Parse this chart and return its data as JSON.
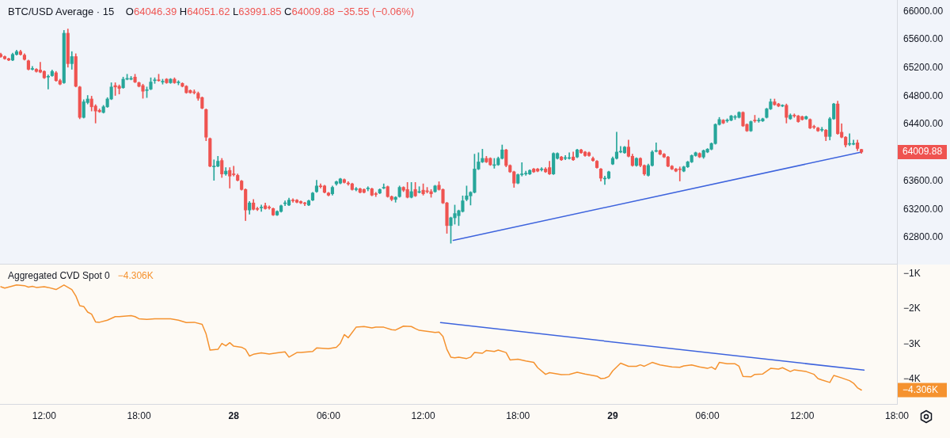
{
  "chart_data": [
    {
      "type": "candlestick",
      "title": "BTC/USD Average · 15",
      "subtitle": "O64046.39 H64051.62 L63991.85 C64009.88 −35.55 (−0.06%)",
      "x": [
        "--04-27T09:15",
        "--04-27T09:30",
        "--04-27T09:45",
        "--04-27T10:00",
        "--04-27T10:15",
        "--04-27T10:30",
        "--04-27T10:45",
        "--04-27T11:00",
        "--04-27T11:15",
        "--04-27T11:30",
        "--04-27T11:45",
        "--04-27T12:00",
        "--04-27T12:15",
        "--04-27T12:30",
        "--04-27T12:45",
        "--04-27T13:00",
        "--04-27T13:15",
        "--04-27T13:30",
        "--04-27T13:45",
        "--04-27T14:00",
        "--04-27T14:15",
        "--04-27T14:30",
        "--04-27T14:45",
        "--04-27T15:00",
        "--04-27T15:15",
        "--04-27T15:30",
        "--04-27T15:45",
        "--04-27T16:00",
        "--04-27T16:15",
        "--04-27T16:30",
        "--04-27T16:45",
        "--04-27T17:00",
        "--04-27T17:15",
        "--04-27T17:30",
        "--04-27T17:45",
        "--04-27T18:00",
        "--04-27T18:15",
        "--04-27T18:30",
        "--04-27T18:45",
        "--04-27T19:00",
        "--04-27T19:15",
        "--04-27T19:30",
        "--04-27T19:45",
        "--04-27T20:00",
        "--04-27T20:15",
        "--04-27T20:30",
        "--04-27T20:45",
        "--04-27T21:00",
        "--04-27T21:15",
        "--04-27T21:30",
        "--04-27T21:45",
        "--04-27T22:00",
        "--04-27T22:15",
        "--04-27T22:30",
        "--04-27T22:45",
        "--04-27T23:00",
        "--04-27T23:15",
        "--04-27T23:30",
        "--04-27T23:45",
        "--04-28T00:00",
        "--04-28T00:15",
        "--04-28T00:30",
        "--04-28T00:45",
        "--04-28T01:00",
        "--04-28T01:15",
        "--04-28T01:30",
        "--04-28T01:45",
        "--04-28T02:00",
        "--04-28T02:15",
        "--04-28T02:30",
        "--04-28T02:45",
        "--04-28T03:00",
        "--04-28T03:15",
        "--04-28T03:30",
        "--04-28T03:45",
        "--04-28T04:00",
        "--04-28T04:15",
        "--04-28T04:30",
        "--04-28T04:45",
        "--04-28T05:00",
        "--04-28T05:15",
        "--04-28T05:30",
        "--04-28T05:45",
        "--04-28T06:00",
        "--04-28T06:15",
        "--04-28T06:30",
        "--04-28T06:45",
        "--04-28T07:00",
        "--04-28T07:15",
        "--04-28T07:30",
        "--04-28T07:45",
        "--04-28T08:00",
        "--04-28T08:15",
        "--04-28T08:30",
        "--04-28T08:45",
        "--04-28T09:00",
        "--04-28T09:15",
        "--04-28T09:30",
        "--04-28T09:45",
        "--04-28T10:00",
        "--04-28T10:15",
        "--04-28T10:30",
        "--04-28T10:45",
        "--04-28T11:00",
        "--04-28T11:15",
        "--04-28T11:30",
        "--04-28T11:45",
        "--04-28T12:00",
        "--04-28T12:15",
        "--04-28T12:30",
        "--04-28T12:45",
        "--04-28T13:00",
        "--04-28T13:15",
        "--04-28T13:30",
        "--04-28T13:45",
        "--04-28T14:00",
        "--04-28T14:15",
        "--04-28T14:30",
        "--04-28T14:45",
        "--04-28T15:00",
        "--04-28T15:15",
        "--04-28T15:30",
        "--04-28T15:45",
        "--04-28T16:00",
        "--04-28T16:15",
        "--04-28T16:30",
        "--04-28T16:45",
        "--04-28T17:00",
        "--04-28T17:15",
        "--04-28T17:30",
        "--04-28T17:45",
        "--04-28T18:00",
        "--04-28T18:15",
        "--04-28T18:30",
        "--04-28T18:45",
        "--04-28T19:00",
        "--04-28T19:15",
        "--04-28T19:30",
        "--04-28T19:45",
        "--04-28T20:00",
        "--04-28T20:15",
        "--04-28T20:30",
        "--04-28T20:45",
        "--04-28T21:00",
        "--04-28T21:15",
        "--04-28T21:30",
        "--04-28T21:45",
        "--04-28T22:00",
        "--04-28T22:15",
        "--04-28T22:30",
        "--04-28T22:45",
        "--04-28T23:00",
        "--04-28T23:15",
        "--04-28T23:30",
        "--04-28T23:45",
        "--04-29T00:00",
        "--04-29T00:15",
        "--04-29T00:30",
        "--04-29T00:45",
        "--04-29T01:00",
        "--04-29T01:15",
        "--04-29T01:30",
        "--04-29T01:45",
        "--04-29T02:00",
        "--04-29T02:15",
        "--04-29T02:30",
        "--04-29T02:45",
        "--04-29T03:00",
        "--04-29T03:15",
        "--04-29T03:30",
        "--04-29T03:45",
        "--04-29T04:00",
        "--04-29T04:15",
        "--04-29T04:30",
        "--04-29T04:45",
        "--04-29T05:00",
        "--04-29T05:15",
        "--04-29T05:30",
        "--04-29T05:45",
        "--04-29T06:00",
        "--04-29T06:15",
        "--04-29T06:30",
        "--04-29T06:45",
        "--04-29T07:00",
        "--04-29T07:15",
        "--04-29T07:30",
        "--04-29T07:45",
        "--04-29T08:00",
        "--04-29T08:15",
        "--04-29T08:30",
        "--04-29T08:45",
        "--04-29T09:00",
        "--04-29T09:15",
        "--04-29T09:30",
        "--04-29T09:45",
        "--04-29T10:00",
        "--04-29T10:15",
        "--04-29T10:30",
        "--04-29T10:45",
        "--04-29T11:00",
        "--04-29T11:15",
        "--04-29T11:30",
        "--04-29T11:45",
        "--04-29T12:00",
        "--04-29T12:15",
        "--04-29T12:30",
        "--04-29T12:45",
        "--04-29T13:00",
        "--04-29T13:15",
        "--04-29T13:30",
        "--04-29T13:45",
        "--04-29T14:00",
        "--04-29T14:15",
        "--04-29T14:30",
        "--04-29T14:45",
        "--04-29T15:00",
        "--04-29T15:15",
        "--04-29T15:30",
        "--04-29T15:45"
      ],
      "ohlc": [
        [
          65390,
          65410,
          65350,
          65360
        ],
        [
          65360,
          65370,
          65320,
          65330
        ],
        [
          65330,
          65340,
          65300,
          65310
        ],
        [
          65310,
          65410,
          65300,
          65390
        ],
        [
          65390,
          65450,
          65380,
          65430
        ],
        [
          65430,
          65450,
          65380,
          65390
        ],
        [
          65380,
          65400,
          65310,
          65320
        ],
        [
          65300,
          65310,
          65170,
          65180
        ],
        [
          65180,
          65220,
          65170,
          65190
        ],
        [
          65180,
          65190,
          65140,
          65150
        ],
        [
          65170,
          65280,
          65130,
          65140
        ],
        [
          65150,
          65160,
          65050,
          65060
        ],
        [
          65070,
          65100,
          64900,
          65080
        ],
        [
          65090,
          65170,
          65080,
          65150
        ],
        [
          65130,
          65150,
          65010,
          65020
        ],
        [
          65020,
          65040,
          64960,
          64970
        ],
        [
          64990,
          65730,
          64980,
          65690
        ],
        [
          65690,
          65750,
          65210,
          65260
        ],
        [
          65260,
          65430,
          65180,
          65360
        ],
        [
          65360,
          65400,
          64930,
          64940
        ],
        [
          64930,
          64940,
          64480,
          64500
        ],
        [
          64500,
          64750,
          64490,
          64720
        ],
        [
          64710,
          64810,
          64690,
          64760
        ],
        [
          64760,
          64800,
          64590,
          64650
        ],
        [
          64660,
          64680,
          64420,
          64590
        ],
        [
          64600,
          64620,
          64570,
          64580
        ],
        [
          64570,
          64670,
          64560,
          64650
        ],
        [
          64650,
          64780,
          64640,
          64760
        ],
        [
          64760,
          64990,
          64750,
          64930
        ],
        [
          64950,
          64990,
          64810,
          64930
        ],
        [
          64940,
          64960,
          64830,
          64910
        ],
        [
          64920,
          65070,
          64910,
          65040
        ],
        [
          65040,
          65110,
          65030,
          65050
        ],
        [
          65040,
          65080,
          65030,
          65050
        ],
        [
          65070,
          65110,
          64990,
          65000
        ],
        [
          64990,
          65000,
          64930,
          64940
        ],
        [
          64950,
          64970,
          64770,
          64870
        ],
        [
          64880,
          64930,
          64780,
          64890
        ],
        [
          64900,
          65060,
          64890,
          65000
        ],
        [
          65020,
          65060,
          64980,
          65030
        ],
        [
          65030,
          65110,
          65010,
          65020
        ],
        [
          65000,
          65040,
          64970,
          65010
        ],
        [
          65040,
          65050,
          64980,
          64990
        ],
        [
          64990,
          65050,
          64980,
          65040
        ],
        [
          65040,
          65060,
          64980,
          64990
        ],
        [
          64990,
          65020,
          64960,
          65000
        ],
        [
          64980,
          64990,
          64930,
          64940
        ],
        [
          64940,
          64950,
          64840,
          64850
        ],
        [
          64880,
          64890,
          64840,
          64850
        ],
        [
          64860,
          64890,
          64830,
          64850
        ],
        [
          64840,
          64860,
          64740,
          64770
        ],
        [
          64780,
          64790,
          64620,
          64630
        ],
        [
          64610,
          64620,
          64170,
          64220
        ],
        [
          64200,
          64210,
          63800,
          63810
        ],
        [
          63800,
          63900,
          63610,
          63810
        ],
        [
          63810,
          63950,
          63800,
          63880
        ],
        [
          63890,
          63920,
          63650,
          63700
        ],
        [
          63700,
          63790,
          63680,
          63740
        ],
        [
          63750,
          63790,
          63500,
          63670
        ],
        [
          63700,
          63810,
          63670,
          63690
        ],
        [
          63680,
          63700,
          63600,
          63610
        ],
        [
          63600,
          63610,
          63470,
          63480
        ],
        [
          63480,
          63490,
          63040,
          63190
        ],
        [
          63190,
          63310,
          63130,
          63290
        ],
        [
          63290,
          63340,
          63190,
          63200
        ],
        [
          63210,
          63230,
          63180,
          63200
        ],
        [
          63220,
          63260,
          63170,
          63230
        ],
        [
          63250,
          63290,
          63200,
          63210
        ],
        [
          63230,
          63250,
          63200,
          63220
        ],
        [
          63210,
          63220,
          63110,
          63120
        ],
        [
          63120,
          63180,
          63110,
          63170
        ],
        [
          63170,
          63260,
          63160,
          63250
        ],
        [
          63280,
          63320,
          63250,
          63290
        ],
        [
          63260,
          63360,
          63250,
          63330
        ],
        [
          63330,
          63350,
          63300,
          63320
        ],
        [
          63330,
          63340,
          63290,
          63300
        ],
        [
          63310,
          63320,
          63280,
          63290
        ],
        [
          63290,
          63300,
          63250,
          63280
        ],
        [
          63260,
          63330,
          63250,
          63320
        ],
        [
          63330,
          63440,
          63320,
          63430
        ],
        [
          63450,
          63610,
          63440,
          63530
        ],
        [
          63530,
          63560,
          63500,
          63520
        ],
        [
          63530,
          63540,
          63430,
          63440
        ],
        [
          63430,
          63440,
          63390,
          63400
        ],
        [
          63420,
          63530,
          63400,
          63510
        ],
        [
          63560,
          63600,
          63540,
          63590
        ],
        [
          63570,
          63640,
          63560,
          63630
        ],
        [
          63620,
          63630,
          63570,
          63580
        ],
        [
          63570,
          63590,
          63540,
          63560
        ],
        [
          63560,
          63570,
          63470,
          63480
        ],
        [
          63480,
          63510,
          63460,
          63490
        ],
        [
          63490,
          63500,
          63430,
          63440
        ],
        [
          63480,
          63490,
          63430,
          63440
        ],
        [
          63490,
          63520,
          63460,
          63500
        ],
        [
          63490,
          63500,
          63390,
          63400
        ],
        [
          63420,
          63440,
          63380,
          63410
        ],
        [
          63430,
          63490,
          63420,
          63480
        ],
        [
          63500,
          63560,
          63490,
          63510
        ],
        [
          63520,
          63530,
          63370,
          63380
        ],
        [
          63380,
          63390,
          63320,
          63340
        ],
        [
          63340,
          63380,
          63300,
          63370
        ],
        [
          63380,
          63530,
          63370,
          63510
        ],
        [
          63510,
          63520,
          63450,
          63470
        ],
        [
          63480,
          63580,
          63360,
          63370
        ],
        [
          63370,
          63580,
          63360,
          63450
        ],
        [
          63480,
          63580,
          63380,
          63390
        ],
        [
          63440,
          63520,
          63430,
          63450
        ],
        [
          63470,
          63560,
          63400,
          63420
        ],
        [
          63460,
          63510,
          63430,
          63450
        ],
        [
          63450,
          63480,
          63370,
          63420
        ],
        [
          63450,
          63540,
          63440,
          63530
        ],
        [
          63540,
          63590,
          63470,
          63480
        ],
        [
          63480,
          63490,
          63280,
          63290
        ],
        [
          63290,
          63300,
          62860,
          62970
        ],
        [
          62970,
          63090,
          62720,
          63080
        ],
        [
          63080,
          63260,
          62990,
          63140
        ],
        [
          63110,
          63190,
          62970,
          63180
        ],
        [
          63170,
          63390,
          63160,
          63320
        ],
        [
          63340,
          63530,
          63320,
          63390
        ],
        [
          63390,
          63450,
          63260,
          63440
        ],
        [
          63440,
          63980,
          63430,
          63770
        ],
        [
          63770,
          64000,
          63760,
          63870
        ],
        [
          63870,
          64050,
          63860,
          63920
        ],
        [
          63920,
          63950,
          63860,
          63870
        ],
        [
          63920,
          63930,
          63820,
          63830
        ],
        [
          63820,
          63920,
          63780,
          63830
        ],
        [
          63830,
          63940,
          63820,
          63920
        ],
        [
          63920,
          64110,
          63910,
          64040
        ],
        [
          64040,
          64050,
          63800,
          63820
        ],
        [
          63820,
          63830,
          63720,
          63730
        ],
        [
          63730,
          63740,
          63510,
          63570
        ],
        [
          63570,
          63700,
          63560,
          63690
        ],
        [
          63690,
          63860,
          63670,
          63700
        ],
        [
          63700,
          63740,
          63680,
          63710
        ],
        [
          63700,
          63760,
          63690,
          63750
        ],
        [
          63770,
          63780,
          63720,
          63730
        ],
        [
          63770,
          63780,
          63730,
          63740
        ],
        [
          63760,
          63790,
          63740,
          63770
        ],
        [
          63770,
          63790,
          63720,
          63730
        ],
        [
          63790,
          63880,
          63690,
          63700
        ],
        [
          63700,
          64000,
          63690,
          63990
        ],
        [
          63920,
          64000,
          63910,
          63990
        ],
        [
          63940,
          63950,
          63890,
          63900
        ],
        [
          63920,
          63960,
          63900,
          63930
        ],
        [
          63920,
          64000,
          63910,
          63930
        ],
        [
          63940,
          64010,
          63890,
          63900
        ],
        [
          63940,
          64050,
          63930,
          64040
        ],
        [
          64040,
          64050,
          63990,
          64000
        ],
        [
          64010,
          64020,
          63950,
          63960
        ],
        [
          64000,
          64010,
          63950,
          63960
        ],
        [
          63920,
          63940,
          63880,
          63890
        ],
        [
          63880,
          63890,
          63780,
          63790
        ],
        [
          63770,
          63780,
          63600,
          63640
        ],
        [
          63630,
          63670,
          63550,
          63640
        ],
        [
          63640,
          63740,
          63630,
          63730
        ],
        [
          63840,
          63940,
          63830,
          63920
        ],
        [
          63920,
          64290,
          63910,
          64010
        ],
        [
          64010,
          64090,
          64000,
          64020
        ],
        [
          64000,
          64090,
          63990,
          64080
        ],
        [
          64080,
          64180,
          63940,
          63950
        ],
        [
          63950,
          63980,
          63810,
          63820
        ],
        [
          63820,
          63930,
          63810,
          63920
        ],
        [
          63920,
          63930,
          63800,
          63820
        ],
        [
          63820,
          63830,
          63680,
          63700
        ],
        [
          63680,
          63840,
          63670,
          63820
        ],
        [
          63820,
          64030,
          63810,
          64010
        ],
        [
          64020,
          64140,
          64010,
          64030
        ],
        [
          64030,
          64040,
          63970,
          63980
        ],
        [
          63980,
          63990,
          63930,
          63940
        ],
        [
          63940,
          63950,
          63800,
          63810
        ],
        [
          63810,
          63820,
          63760,
          63770
        ],
        [
          63770,
          63780,
          63730,
          63740
        ],
        [
          63770,
          63800,
          63600,
          63760
        ],
        [
          63740,
          63810,
          63730,
          63800
        ],
        [
          63800,
          63880,
          63790,
          63870
        ],
        [
          63870,
          63970,
          63860,
          63960
        ],
        [
          63960,
          64010,
          63950,
          64000
        ],
        [
          63990,
          64000,
          63930,
          63940
        ],
        [
          63940,
          64040,
          63920,
          64030
        ],
        [
          64010,
          64060,
          64000,
          64050
        ],
        [
          64050,
          64140,
          64040,
          64130
        ],
        [
          64130,
          64410,
          64120,
          64400
        ],
        [
          64400,
          64500,
          64390,
          64470
        ],
        [
          64460,
          64470,
          64410,
          64420
        ],
        [
          64450,
          64480,
          64430,
          64460
        ],
        [
          64460,
          64530,
          64450,
          64520
        ],
        [
          64500,
          64530,
          64470,
          64510
        ],
        [
          64500,
          64580,
          64490,
          64570
        ],
        [
          64570,
          64580,
          64370,
          64380
        ],
        [
          64400,
          64410,
          64300,
          64310
        ],
        [
          64310,
          64450,
          64300,
          64440
        ],
        [
          64460,
          64530,
          64430,
          64450
        ],
        [
          64450,
          64490,
          64430,
          64460
        ],
        [
          64450,
          64490,
          64440,
          64480
        ],
        [
          64500,
          64630,
          64490,
          64620
        ],
        [
          64620,
          64760,
          64610,
          64720
        ],
        [
          64720,
          64760,
          64670,
          64680
        ],
        [
          64690,
          64700,
          64650,
          64660
        ],
        [
          64660,
          64680,
          64650,
          64670
        ],
        [
          64670,
          64690,
          64420,
          64500
        ],
        [
          64480,
          64550,
          64470,
          64530
        ],
        [
          64530,
          64550,
          64500,
          64520
        ],
        [
          64520,
          64530,
          64430,
          64440
        ],
        [
          64510,
          64520,
          64460,
          64470
        ],
        [
          64480,
          64520,
          64470,
          64510
        ],
        [
          64470,
          64480,
          64340,
          64350
        ],
        [
          64370,
          64390,
          64340,
          64360
        ],
        [
          64350,
          64360,
          64300,
          64310
        ],
        [
          64320,
          64360,
          64300,
          64330
        ],
        [
          64320,
          64330,
          64170,
          64230
        ],
        [
          64230,
          64500,
          64180,
          64480
        ],
        [
          64480,
          64700,
          64470,
          64690
        ],
        [
          64690,
          64730,
          64260,
          64270
        ],
        [
          64290,
          64410,
          64210,
          64220
        ],
        [
          64220,
          64230,
          64080,
          64110
        ],
        [
          64120,
          64270,
          64100,
          64130
        ],
        [
          64120,
          64180,
          64110,
          64130
        ],
        [
          64140,
          64180,
          64030,
          64060
        ],
        [
          64046.39,
          64051.62,
          63991.85,
          64009.88
        ]
      ],
      "colors": [
        "#ef5350",
        "#ef5350",
        "#ef5350",
        "#26a69a",
        "#26a69a",
        "#ef5350",
        "#ef5350",
        "#ef5350",
        "#26a69a",
        "#ef5350",
        "#ef5350",
        "#ef5350",
        "#26a69a",
        "#26a69a",
        "#ef5350",
        "#ef5350",
        "#26a69a",
        "#ef5350",
        "#26a69a",
        "#ef5350",
        "#ef5350",
        "#26a69a",
        "#26a69a",
        "#ef5350",
        "#ef5350",
        "#ef5350",
        "#26a69a",
        "#26a69a",
        "#26a69a",
        "#ef5350",
        "#ef5350",
        "#26a69a",
        "#26a69a",
        "#26a69a",
        "#ef5350",
        "#ef5350",
        "#ef5350",
        "#26a69a",
        "#26a69a",
        "#26a69a",
        "#ef5350",
        "#26a69a",
        "#ef5350",
        "#26a69a",
        "#ef5350",
        "#26a69a",
        "#ef5350",
        "#ef5350",
        "#ef5350",
        "#ef5350",
        "#ef5350",
        "#ef5350",
        "#ef5350",
        "#ef5350",
        "#26a69a",
        "#26a69a",
        "#ef5350",
        "#26a69a",
        "#ef5350",
        "#ef5350",
        "#ef5350",
        "#ef5350",
        "#ef5350",
        "#26a69a",
        "#ef5350",
        "#ef5350",
        "#26a69a",
        "#ef5350",
        "#ef5350",
        "#ef5350",
        "#26a69a",
        "#26a69a",
        "#26a69a",
        "#26a69a",
        "#ef5350",
        "#ef5350",
        "#ef5350",
        "#ef5350",
        "#26a69a",
        "#26a69a",
        "#26a69a",
        "#ef5350",
        "#ef5350",
        "#ef5350",
        "#26a69a",
        "#26a69a",
        "#26a69a",
        "#ef5350",
        "#ef5350",
        "#ef5350",
        "#26a69a",
        "#ef5350",
        "#ef5350",
        "#26a69a",
        "#ef5350",
        "#ef5350",
        "#26a69a",
        "#26a69a",
        "#ef5350",
        "#ef5350",
        "#26a69a",
        "#26a69a",
        "#ef5350",
        "#ef5350",
        "#26a69a",
        "#ef5350",
        "#26a69a",
        "#ef5350",
        "#ef5350",
        "#ef5350",
        "#26a69a",
        "#ef5350",
        "#ef5350",
        "#ef5350",
        "#26a69a",
        "#26a69a",
        "#26a69a",
        "#26a69a",
        "#26a69a",
        "#26a69a",
        "#26a69a",
        "#26a69a",
        "#26a69a",
        "#ef5350",
        "#ef5350",
        "#26a69a",
        "#26a69a",
        "#26a69a",
        "#ef5350",
        "#ef5350",
        "#ef5350",
        "#26a69a",
        "#26a69a",
        "#26a69a",
        "#26a69a",
        "#ef5350",
        "#ef5350",
        "#26a69a",
        "#ef5350",
        "#ef5350",
        "#26a69a",
        "#26a69a",
        "#ef5350",
        "#26a69a",
        "#26a69a",
        "#ef5350",
        "#26a69a",
        "#ef5350",
        "#ef5350",
        "#ef5350",
        "#ef5350",
        "#ef5350",
        "#ef5350",
        "#26a69a",
        "#26a69a",
        "#26a69a",
        "#26a69a",
        "#26a69a",
        "#26a69a",
        "#ef5350",
        "#ef5350",
        "#26a69a",
        "#ef5350",
        "#ef5350",
        "#26a69a",
        "#26a69a",
        "#26a69a",
        "#ef5350",
        "#ef5350",
        "#ef5350",
        "#ef5350",
        "#ef5350",
        "#ef5350",
        "#26a69a",
        "#26a69a",
        "#26a69a",
        "#26a69a",
        "#ef5350",
        "#26a69a",
        "#26a69a",
        "#26a69a",
        "#26a69a",
        "#26a69a",
        "#ef5350",
        "#26a69a",
        "#26a69a",
        "#26a69a",
        "#26a69a",
        "#ef5350",
        "#ef5350",
        "#26a69a",
        "#ef5350",
        "#26a69a",
        "#26a69a",
        "#26a69a",
        "#26a69a",
        "#ef5350",
        "#ef5350",
        "#26a69a",
        "#ef5350",
        "#26a69a",
        "#ef5350",
        "#ef5350",
        "#ef5350",
        "#26a69a",
        "#ef5350",
        "#ef5350",
        "#ef5350",
        "#26a69a",
        "#ef5350",
        "#26a69a",
        "#26a69a",
        "#ef5350",
        "#ef5350",
        "#ef5350",
        "#26a69a",
        "#26a69a",
        "#ef5350",
        "#ef5350"
      ],
      "series": [
        {
          "type": "line",
          "color": "#3d63dd",
          "x": [
            "--04-28T13:54",
            "--04-29T15:45"
          ],
          "values": [
            62760,
            64010
          ]
        }
      ],
      "xlim": [
        "--04-27T09:12",
        "--04-29T18:00"
      ],
      "ylim": [
        62430,
        66160
      ],
      "yticks": [
        {
          "value": 66000,
          "label": "66000.00"
        },
        {
          "value": 65600,
          "label": "65600.00"
        },
        {
          "value": 65200,
          "label": "65200.00"
        },
        {
          "value": 64800,
          "label": "64800.00"
        },
        {
          "value": 64400,
          "label": "64400.00"
        },
        {
          "value": 63600,
          "label": "63600.00"
        },
        {
          "value": 63200,
          "label": "63200.00"
        },
        {
          "value": 62800,
          "label": "62800.00"
        }
      ],
      "tick_labels": "y",
      "annotations": [
        "64009.88"
      ]
    },
    {
      "type": "line",
      "series": [
        {
          "name": "Aggregated CVD Spot 0",
          "color": "#f5922f",
          "x": [
            "--04-27T09:15",
            "--04-27T09:30",
            "--04-27T10:15",
            "--04-27T10:45",
            "--04-27T11:00",
            "--04-27T11:15",
            "--04-27T11:30",
            "--04-27T12:00",
            "--04-27T12:15",
            "--04-27T12:45",
            "--04-27T13:15",
            "--04-27T13:45",
            "--04-27T14:00",
            "--04-27T14:15",
            "--04-27T14:30",
            "--04-27T14:45",
            "--04-27T15:00",
            "--04-27T15:15",
            "--04-27T15:30",
            "--04-27T16:00",
            "--04-27T16:30",
            "--04-27T16:45",
            "--04-27T17:30",
            "--04-27T17:45",
            "--04-27T18:00",
            "--04-27T18:30",
            "--04-27T19:00",
            "--04-27T20:00",
            "--04-27T20:30",
            "--04-27T21:00",
            "--04-27T21:30",
            "--04-27T22:00",
            "--04-27T22:15",
            "--04-27T22:30",
            "--04-27T23:00",
            "--04-27T23:15",
            "--04-27T23:30",
            "--04-27T23:45",
            "--04-28T00:00",
            "--04-28T00:30",
            "--04-28T00:45",
            "--04-28T01:00",
            "--04-28T01:15",
            "--04-28T01:45",
            "--04-28T02:15",
            "--04-28T02:45",
            "--04-28T03:15",
            "--04-28T03:30",
            "--04-28T04:00",
            "--04-28T04:15",
            "--04-28T05:00",
            "--04-28T05:15",
            "--04-28T06:00",
            "--04-28T06:30",
            "--04-28T06:45",
            "--04-28T07:00",
            "--04-28T07:15",
            "--04-28T07:45",
            "--04-28T08:15",
            "--04-28T08:45",
            "--04-28T09:00",
            "--04-28T09:30",
            "--04-28T10:00",
            "--04-28T10:15",
            "--04-28T10:45",
            "--04-28T11:15",
            "--04-28T11:30",
            "--04-28T11:45",
            "--04-28T12:30",
            "--04-28T12:45",
            "--04-28T13:00",
            "--04-28T13:15",
            "--04-28T13:30",
            "--04-28T13:45",
            "--04-28T14:00",
            "--04-28T14:15",
            "--04-28T14:45",
            "--04-28T15:00",
            "--04-28T15:15",
            "--04-28T15:45",
            "--04-28T16:00",
            "--04-28T16:30",
            "--04-28T16:45",
            "--04-28T17:15",
            "--04-28T17:30",
            "--04-28T18:00",
            "--04-28T18:30",
            "--04-28T19:00",
            "--04-28T19:15",
            "--04-28T19:45",
            "--04-28T20:00",
            "--04-28T20:45",
            "--04-28T21:15",
            "--04-28T21:45",
            "--04-28T22:15",
            "--04-28T23:00",
            "--04-28T23:15",
            "--04-28T23:30",
            "--04-28T23:45",
            "--04-29T00:00",
            "--04-29T00:30",
            "--04-29T01:00",
            "--04-29T01:30",
            "--04-29T01:45",
            "--04-29T02:00",
            "--04-29T02:30",
            "--04-29T03:00",
            "--04-29T03:45",
            "--04-29T04:15",
            "--04-29T04:30",
            "--04-29T05:00",
            "--04-29T05:30",
            "--04-29T06:00",
            "--04-29T06:15",
            "--04-29T06:30",
            "--04-29T06:45",
            "--04-29T07:15",
            "--04-29T07:45",
            "--04-29T08:00",
            "--04-29T08:15",
            "--04-29T08:45",
            "--04-29T09:00",
            "--04-29T09:30",
            "--04-29T10:00",
            "--04-29T10:30",
            "--04-29T10:45",
            "--04-29T11:15",
            "--04-29T11:30",
            "--04-29T12:15",
            "--04-29T12:45",
            "--04-29T13:00",
            "--04-29T13:15",
            "--04-29T13:45",
            "--04-29T14:00",
            "--04-29T14:30",
            "--04-29T15:00",
            "--04-29T15:15",
            "--04-29T15:30",
            "--04-29T15:45"
          ],
          "values": [
            -1.37,
            -1.41,
            -1.32,
            -1.34,
            -1.38,
            -1.36,
            -1.39,
            -1.37,
            -1.39,
            -1.45,
            -1.32,
            -1.45,
            -1.63,
            -1.91,
            -1.93,
            -2.09,
            -2.15,
            -2.37,
            -2.38,
            -2.32,
            -2.22,
            -2.22,
            -2.19,
            -2.22,
            -2.28,
            -2.3,
            -2.28,
            -2.28,
            -2.32,
            -2.39,
            -2.38,
            -2.44,
            -2.71,
            -3.17,
            -3.15,
            -2.98,
            -3.05,
            -2.96,
            -3.06,
            -3.09,
            -3.15,
            -3.34,
            -3.29,
            -3.25,
            -3.28,
            -3.25,
            -3.22,
            -3.37,
            -3.24,
            -3.24,
            -3.21,
            -3.11,
            -3.13,
            -3.09,
            -2.98,
            -2.73,
            -2.82,
            -2.52,
            -2.5,
            -2.54,
            -2.52,
            -2.52,
            -2.59,
            -2.6,
            -2.49,
            -2.5,
            -2.56,
            -2.61,
            -2.65,
            -2.67,
            -2.66,
            -2.78,
            -3.15,
            -3.37,
            -3.39,
            -3.37,
            -3.41,
            -3.37,
            -3.24,
            -3.26,
            -3.18,
            -3.21,
            -3.17,
            -3.24,
            -3.45,
            -3.43,
            -3.48,
            -3.52,
            -3.67,
            -3.86,
            -3.81,
            -3.87,
            -3.86,
            -3.8,
            -3.85,
            -3.91,
            -3.98,
            -3.97,
            -3.92,
            -3.76,
            -3.54,
            -3.63,
            -3.63,
            -3.59,
            -3.63,
            -3.52,
            -3.59,
            -3.65,
            -3.66,
            -3.62,
            -3.59,
            -3.65,
            -3.69,
            -3.65,
            -3.72,
            -3.52,
            -3.56,
            -3.56,
            -3.63,
            -3.92,
            -3.93,
            -3.86,
            -3.85,
            -3.69,
            -3.71,
            -3.67,
            -3.78,
            -3.73,
            -3.78,
            -3.86,
            -3.98,
            -4.02,
            -4.09,
            -3.89,
            -3.96,
            -4.04,
            -4.11,
            -4.24,
            -4.306
          ]
        },
        {
          "color": "#3d63dd",
          "x": [
            "--04-28T13:06",
            "--04-29T15:55"
          ],
          "values": [
            -2.39,
            -3.74
          ]
        }
      ],
      "xlim": [
        "--04-27T09:12",
        "--04-29T18:00"
      ],
      "ylim": [
        -4.7,
        -0.74
      ],
      "xticks": [
        {
          "value": "--04-27T12:00",
          "label": "12:00"
        },
        {
          "value": "--04-27T18:00",
          "label": "18:00"
        },
        {
          "value": "--04-28",
          "label": "28"
        },
        {
          "value": "--04-28T06:00",
          "label": "06:00"
        },
        {
          "value": "--04-28T12:00",
          "label": "12:00"
        },
        {
          "value": "--04-28T18:00",
          "label": "18:00"
        },
        {
          "value": "--04-29",
          "label": "29"
        },
        {
          "value": "--04-29T06:00",
          "label": "06:00"
        },
        {
          "value": "--04-29T12:00",
          "label": "12:00"
        },
        {
          "value": "--04-29T18:00",
          "label": "18:00"
        }
      ],
      "yticks": [
        {
          "value": -1,
          "label": "−1K"
        },
        {
          "value": -2,
          "label": "−2K"
        },
        {
          "value": -3,
          "label": "−3K"
        },
        {
          "value": -4,
          "label": "−4K"
        }
      ],
      "legend": "top left",
      "annotations": [
        "−4.306K"
      ]
    }
  ]
}
